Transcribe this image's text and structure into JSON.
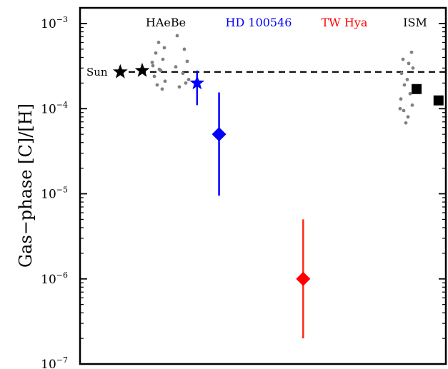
{
  "chart_data": {
    "type": "scatter",
    "ylabel": "Gas−phase [C]/[H]",
    "yscale": "log",
    "ylim": [
      1e-07,
      0.0011
    ],
    "yticks": [
      {
        "value": 0.001,
        "base": "10",
        "exp": "−3"
      },
      {
        "value": 0.0001,
        "base": "10",
        "exp": "−4"
      },
      {
        "value": 1e-05,
        "base": "10",
        "exp": "−5"
      },
      {
        "value": 1e-06,
        "base": "10",
        "exp": "−6"
      },
      {
        "value": 1e-07,
        "base": "10",
        "exp": "−7"
      }
    ],
    "xticks_shown": false,
    "groups": [
      {
        "label": "HAeBe",
        "color": "#000000"
      },
      {
        "label": "HD 100546",
        "color": "#0000ff"
      },
      {
        "label": "TW Hya",
        "color": "#ff0000"
      },
      {
        "label": "ISM",
        "color": "#000000"
      }
    ],
    "reference_line": {
      "label": "Sun",
      "value": 0.00027,
      "style": "dashed"
    },
    "haebe_stars": [
      {
        "x": 0.11,
        "y": 0.00027
      },
      {
        "x": 0.17,
        "y": 0.00028
      }
    ],
    "haebe_scatter_left": [
      0.0006,
      0.00052,
      0.00045,
      0.00038,
      0.00032,
      0.00028,
      0.00024,
      0.00021,
      0.00019,
      0.00017,
      0.00035,
      0.00029
    ],
    "haebe_scatter_right": [
      0.00072,
      0.0005,
      0.00036,
      0.00031,
      0.00026,
      0.00022,
      0.00018,
      0.0002
    ],
    "hd100546_star": {
      "x": 0.32,
      "y": 0.0002,
      "ylow": 0.00011,
      "yhigh": 0.00028
    },
    "hd100546_diamond": {
      "x": 0.38,
      "y": 5e-05,
      "ylow": 9.5e-06,
      "yhigh": 0.000155
    },
    "twhya_diamond": {
      "x": 0.61,
      "y": 1e-06,
      "ylow": 2e-07,
      "yhigh": 5e-06
    },
    "ism_scatter": [
      0.00046,
      0.00038,
      0.00034,
      0.0003,
      0.00026,
      0.00022,
      0.00019,
      0.00015,
      0.00013,
      0.00011,
      9.5e-05,
      8e-05,
      6.8e-05,
      0.0001
    ],
    "ism_squares": [
      {
        "x": 0.92,
        "y": 0.00017
      },
      {
        "x": 0.98,
        "y": 0.000125
      }
    ]
  }
}
